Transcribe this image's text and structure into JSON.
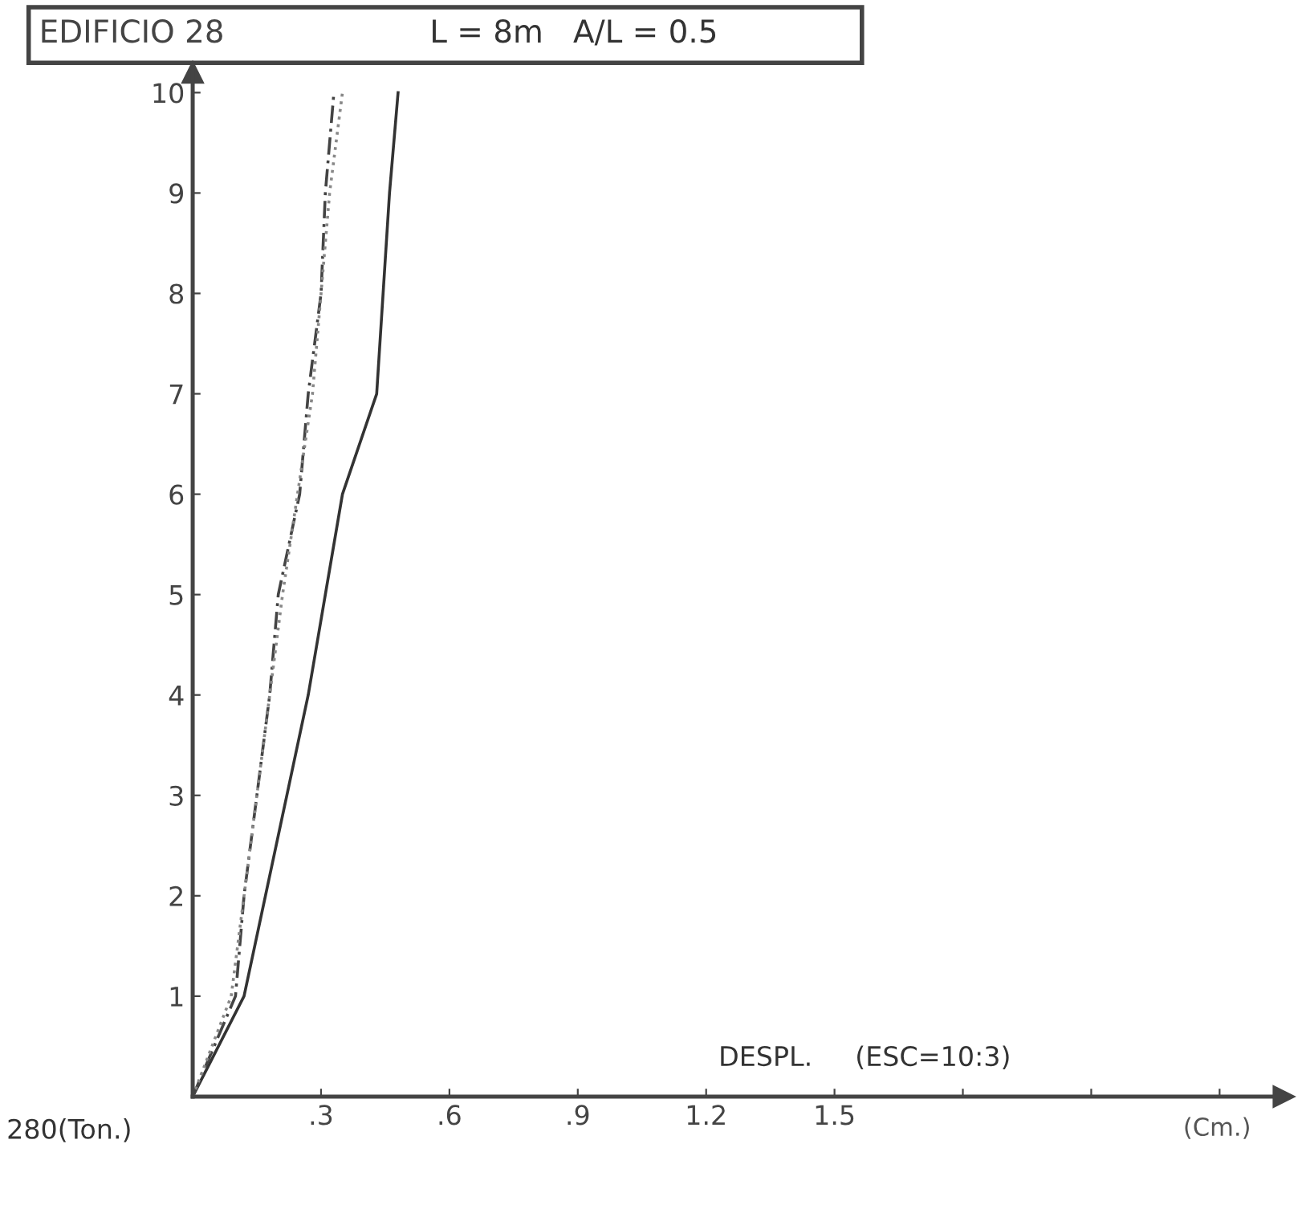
{
  "chart_data": {
    "type": "line",
    "title": "EDIFICIO 28",
    "subtitle": "L = 8m   A/L = 0.5",
    "xlabel": "DESPL.     (ESC=10:3)",
    "annotations": [
      "(Cm.)",
      "280(Ton.)"
    ],
    "series": [
      {
        "color": "#333333",
        "line_style": "solid",
        "x": [
          0,
          0.12,
          0.17,
          0.22,
          0.27,
          0.31,
          0.35,
          0.43,
          0.46,
          0.48
        ],
        "values": [
          0,
          1,
          2,
          3,
          4,
          5,
          6,
          7,
          9,
          10
        ]
      },
      {
        "color": "#444444",
        "line_style": "dashed",
        "x": [
          0,
          0.1,
          0.12,
          0.15,
          0.18,
          0.2,
          0.25,
          0.27,
          0.3,
          0.31,
          0.33
        ],
        "values": [
          0,
          1,
          2,
          3,
          4,
          5,
          6,
          7,
          8,
          9,
          10
        ]
      },
      {
        "color": "#888888",
        "line_style": "dotted",
        "x": [
          0,
          0.09,
          0.12,
          0.15,
          0.21,
          0.28,
          0.32,
          0.35
        ],
        "values": [
          0,
          1,
          2,
          3,
          5,
          7,
          9,
          10
        ]
      }
    ],
    "xlim": [
      0,
      2.55
    ],
    "ylim": [
      0,
      10.2
    ],
    "xticks": [
      {
        "value": 0.3,
        "label": ".3"
      },
      {
        "value": 0.6,
        "label": ".6"
      },
      {
        "value": 0.9,
        "label": ".9"
      },
      1.2,
      1.5,
      {
        "value": 1.8,
        "label": null
      },
      {
        "value": 2.1,
        "label": null
      },
      {
        "value": 2.4,
        "label": null
      }
    ],
    "yticks": [
      1,
      2,
      3,
      4,
      5,
      6,
      7,
      8,
      9,
      10
    ],
    "grid": false,
    "legend": false
  }
}
